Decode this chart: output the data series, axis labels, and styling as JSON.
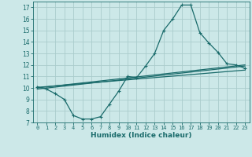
{
  "xlabel": "Humidex (Indice chaleur)",
  "background_color": "#cce8e8",
  "grid_color": "#aacccc",
  "line_color": "#1a6b6b",
  "xlim": [
    -0.5,
    23.5
  ],
  "ylim": [
    7,
    17.5
  ],
  "xticks": [
    0,
    1,
    2,
    3,
    4,
    5,
    6,
    7,
    8,
    9,
    10,
    11,
    12,
    13,
    14,
    15,
    16,
    17,
    18,
    19,
    20,
    21,
    22,
    23
  ],
  "yticks": [
    7,
    8,
    9,
    10,
    11,
    12,
    13,
    14,
    15,
    16,
    17
  ],
  "curve1_x": [
    0,
    1,
    2,
    3,
    4,
    5,
    6,
    7,
    8,
    9,
    10,
    11,
    12,
    13,
    14,
    15,
    16,
    17,
    18,
    19,
    20,
    21,
    22,
    23
  ],
  "curve1_y": [
    10.1,
    9.9,
    9.5,
    9.0,
    7.6,
    7.3,
    7.3,
    7.5,
    8.6,
    9.7,
    11.0,
    10.9,
    11.9,
    13.0,
    15.0,
    16.0,
    17.2,
    17.2,
    14.8,
    13.9,
    13.1,
    12.1,
    12.0,
    11.7
  ],
  "curve2_x": [
    0,
    23
  ],
  "curve2_y": [
    10.0,
    12.0
  ],
  "curve3_x": [
    0,
    23
  ],
  "curve3_y": [
    10.05,
    11.55
  ],
  "curve4_x": [
    0,
    23
  ],
  "curve4_y": [
    9.9,
    11.9
  ],
  "markersize": 3,
  "linewidth": 0.9
}
